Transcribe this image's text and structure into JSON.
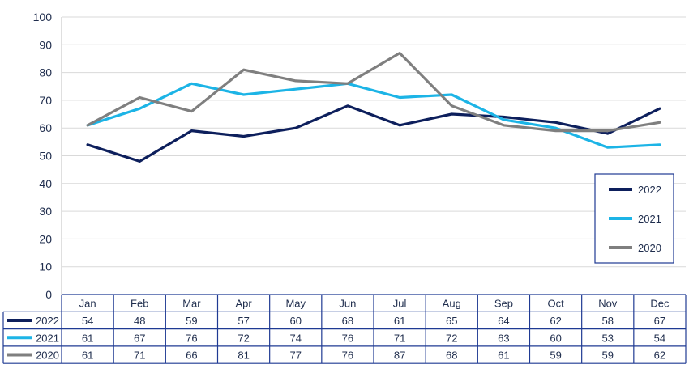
{
  "chart_data": {
    "type": "line",
    "categories": [
      "Jan",
      "Feb",
      "Mar",
      "Apr",
      "May",
      "Jun",
      "Jul",
      "Aug",
      "Sep",
      "Oct",
      "Nov",
      "Dec"
    ],
    "series": [
      {
        "name": "2022",
        "color": "#0d1f5c",
        "values": [
          54,
          48,
          59,
          57,
          60,
          68,
          61,
          65,
          64,
          62,
          58,
          67
        ]
      },
      {
        "name": "2021",
        "color": "#1cb4e6",
        "values": [
          61,
          67,
          76,
          72,
          74,
          76,
          71,
          72,
          63,
          60,
          53,
          54
        ]
      },
      {
        "name": "2020",
        "color": "#7f7f7f",
        "values": [
          61,
          71,
          66,
          81,
          77,
          76,
          87,
          68,
          61,
          59,
          59,
          62
        ]
      }
    ],
    "ylim": [
      0,
      100
    ],
    "yticks": [
      0,
      10,
      20,
      30,
      40,
      50,
      60,
      70,
      80,
      90,
      100
    ],
    "grid": true,
    "legend": "right",
    "data_table": true
  }
}
